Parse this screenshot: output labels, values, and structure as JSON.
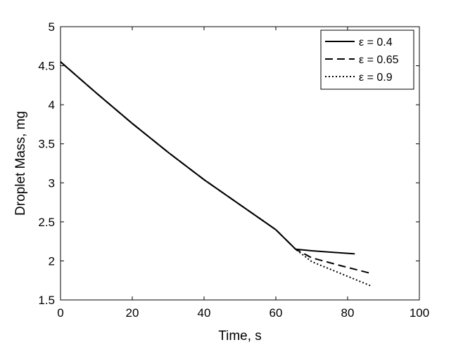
{
  "chart_data": {
    "type": "line",
    "title": "",
    "xlabel": "Time, s",
    "ylabel": "Droplet Mass, mg",
    "xlim": [
      0,
      100
    ],
    "ylim": [
      1.5,
      5
    ],
    "x_ticks": [
      0,
      20,
      40,
      60,
      80,
      100
    ],
    "x_tick_labels": [
      "0",
      "20",
      "40",
      "60",
      "80",
      "100"
    ],
    "y_ticks": [
      1.5,
      2,
      2.5,
      3,
      3.5,
      4,
      4.5,
      5
    ],
    "y_tick_labels": [
      "1.5",
      "2",
      "2.5",
      "3",
      "3.5",
      "4",
      "4.5",
      "5"
    ],
    "grid": false,
    "legend_position": "top-right",
    "series": [
      {
        "name": "ε = 0.4",
        "line_style": "solid",
        "color": "#000000",
        "points": [
          [
            0,
            4.55
          ],
          [
            10,
            4.15
          ],
          [
            20,
            3.76
          ],
          [
            30,
            3.39
          ],
          [
            40,
            3.04
          ],
          [
            50,
            2.72
          ],
          [
            60,
            2.4
          ],
          [
            65.5,
            2.15
          ],
          [
            70,
            2.13
          ],
          [
            76,
            2.11
          ],
          [
            82,
            2.09
          ]
        ]
      },
      {
        "name": "ε = 0.65",
        "line_style": "dashed",
        "color": "#000000",
        "points": [
          [
            0,
            4.55
          ],
          [
            10,
            4.15
          ],
          [
            20,
            3.76
          ],
          [
            30,
            3.39
          ],
          [
            40,
            3.04
          ],
          [
            50,
            2.72
          ],
          [
            60,
            2.4
          ],
          [
            65.5,
            2.15
          ],
          [
            70,
            2.04
          ],
          [
            78,
            1.94
          ],
          [
            86.5,
            1.84
          ]
        ]
      },
      {
        "name": "ε = 0.9",
        "line_style": "dotted",
        "color": "#000000",
        "points": [
          [
            0,
            4.55
          ],
          [
            10,
            4.15
          ],
          [
            20,
            3.76
          ],
          [
            30,
            3.39
          ],
          [
            40,
            3.04
          ],
          [
            50,
            2.72
          ],
          [
            60,
            2.4
          ],
          [
            65.5,
            2.15
          ],
          [
            70,
            1.99
          ],
          [
            78,
            1.84
          ],
          [
            86.5,
            1.68
          ]
        ]
      }
    ]
  }
}
